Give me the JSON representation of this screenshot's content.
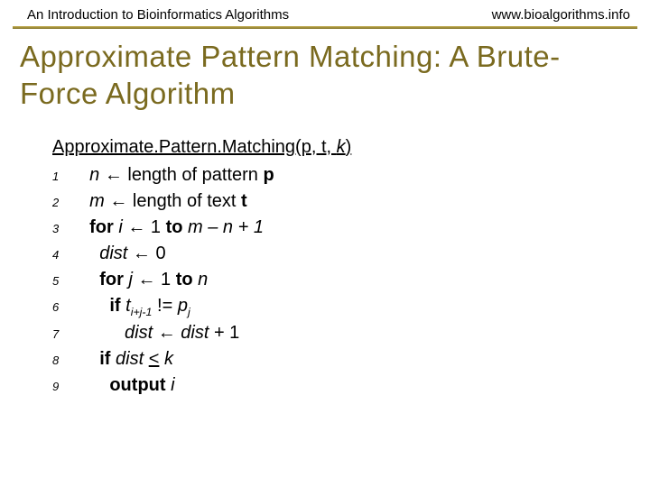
{
  "header": {
    "left": "An Introduction to Bioinformatics Algorithms",
    "right": "www.bioalgorithms.info"
  },
  "title": "Approximate Pattern Matching: A Brute-Force Algorithm",
  "colors": {
    "title_color": "#7a6a1f",
    "divider_top": "#bba64d",
    "divider_bottom": "#8a7a2c",
    "background": "#ffffff",
    "text": "#000000"
  },
  "typography": {
    "header_fontsize": 15,
    "title_fontsize": 33,
    "body_fontsize": 20,
    "lineno_fontsize": 13,
    "title_font": "Trebuchet MS",
    "body_font": "Verdana"
  },
  "algorithm": {
    "func_name": "Approximate.Pattern.Matching",
    "params": [
      "p",
      "t",
      "k"
    ],
    "lines": {
      "1": {
        "indent": 1,
        "var1": "n",
        "arrow": "←",
        "txt1": " length of pattern ",
        "bf1": "p"
      },
      "2": {
        "indent": 1,
        "var1": "m",
        "arrow": "←",
        "txt1": " length of text ",
        "bf1": "t"
      },
      "3": {
        "indent": 1,
        "kw": "for ",
        "var1": "i ",
        "arrow": "←",
        "txt1": " 1 ",
        "kw2": "to ",
        "expr": "m – n + 1"
      },
      "4": {
        "indent": 2,
        "var1": "dist ",
        "arrow": "←",
        "txt1": " 0"
      },
      "5": {
        "indent": 2,
        "kw": "for ",
        "var1": "j ",
        "arrow": "←",
        "txt1": " 1 ",
        "kw2": "to ",
        "expr": "n"
      },
      "6": {
        "indent": 3,
        "kw": "if ",
        "var1": "t",
        "sub1": "i+j-1",
        "txt1": " != ",
        "var2": "p",
        "sub2": "j"
      },
      "7": {
        "indent": 4,
        "var1": "dist ",
        "arrow": "←",
        "var2": " dist",
        "txt1": " + 1"
      },
      "8": {
        "indent": 2,
        "kw": "if ",
        "var1": "dist ",
        "ul_op": "<",
        "var2": " k"
      },
      "9": {
        "indent": 3,
        "kw": "output ",
        "var1": "i"
      }
    }
  }
}
